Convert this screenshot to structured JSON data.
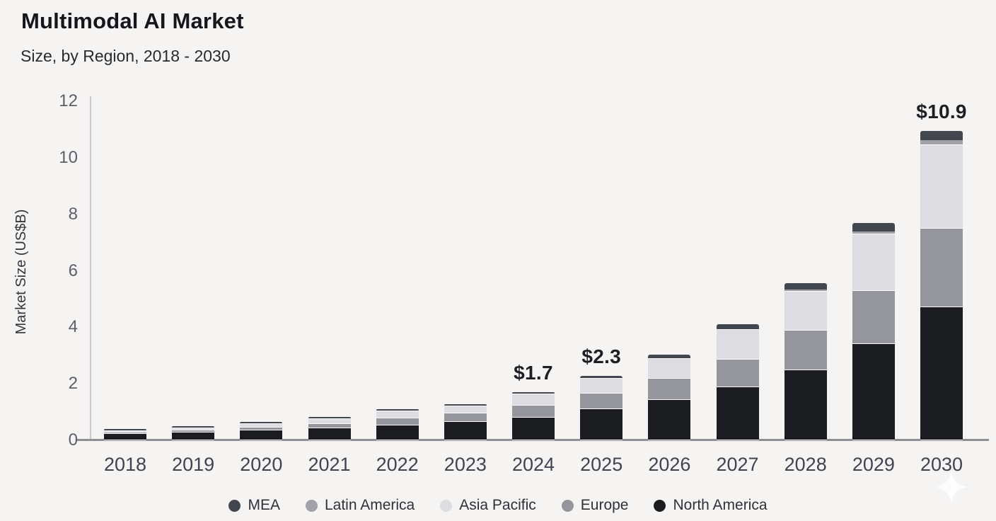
{
  "header": {
    "title": "Multimodal AI Market",
    "subtitle": "Size, by Region, 2018 - 2030"
  },
  "chart_data": {
    "type": "bar",
    "stacked": true,
    "title": "Multimodal AI Market",
    "subtitle": "Size, by Region, 2018 - 2030",
    "xlabel": "",
    "ylabel": "Market Size (US$B)",
    "ylim": [
      0,
      12
    ],
    "yticks": [
      0,
      2,
      4,
      6,
      8,
      10,
      12
    ],
    "grid": false,
    "legend_position": "bottom-center",
    "categories": [
      "2018",
      "2019",
      "2020",
      "2021",
      "2022",
      "2023",
      "2024",
      "2025",
      "2026",
      "2027",
      "2028",
      "2029",
      "2030"
    ],
    "stack_order_bottom_to_top": [
      "North America",
      "Europe",
      "Asia Pacific",
      "Latin America",
      "MEA"
    ],
    "series": [
      {
        "name": "MEA",
        "color": "#42474f",
        "values": [
          0.03,
          0.04,
          0.05,
          0.04,
          0.04,
          0.05,
          0.04,
          0.08,
          0.12,
          0.16,
          0.22,
          0.3,
          0.33
        ]
      },
      {
        "name": "Latin America",
        "color": "#a0a1a9",
        "values": [
          0.01,
          0.01,
          0.02,
          0.02,
          0.02,
          0.02,
          0.02,
          0.03,
          0.03,
          0.04,
          0.07,
          0.12,
          0.17
        ]
      },
      {
        "name": "Asia Pacific",
        "color": "#dcdce1",
        "values": [
          0.08,
          0.1,
          0.13,
          0.18,
          0.25,
          0.26,
          0.42,
          0.52,
          0.7,
          1.05,
          1.38,
          2.0,
          2.95
        ]
      },
      {
        "name": "Europe",
        "color": "#94959d",
        "values": [
          0.05,
          0.07,
          0.09,
          0.15,
          0.25,
          0.3,
          0.42,
          0.55,
          0.75,
          0.97,
          1.4,
          1.88,
          2.8
        ]
      },
      {
        "name": "North America",
        "color": "#1b1c20",
        "values": [
          0.22,
          0.28,
          0.35,
          0.43,
          0.53,
          0.65,
          0.8,
          1.1,
          1.43,
          1.88,
          2.48,
          3.4,
          4.7
        ]
      }
    ],
    "totals": [
      0.4,
      0.5,
      0.6,
      0.8,
      1.1,
      1.3,
      1.7,
      2.3,
      3.0,
      4.1,
      5.6,
      7.7,
      10.9
    ],
    "annotations": [
      {
        "category": "2024",
        "text": "$1.7"
      },
      {
        "category": "2025",
        "text": "$2.3"
      },
      {
        "category": "2030",
        "text": "$10.9"
      }
    ]
  }
}
